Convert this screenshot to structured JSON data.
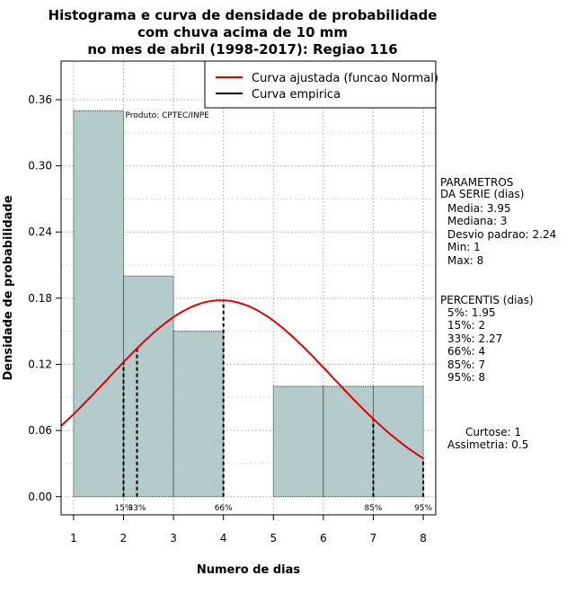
{
  "chart_data": {
    "type": "bar",
    "title_lines": [
      "Histograma e curva de densidade de probabilidade",
      "com chuva acima de 10 mm",
      "no mes de abril (1998-2017): Regiao 116"
    ],
    "xlabel": "Numero de dias",
    "ylabel": "Densidade de probabilidade",
    "xlim": [
      0.75,
      8.25
    ],
    "ylim": [
      -0.0165,
      0.395
    ],
    "x_ticks": [
      "1",
      "2",
      "3",
      "4",
      "5",
      "6",
      "7",
      "8"
    ],
    "y_ticks": [
      "0.00",
      "0.06",
      "0.12",
      "0.18",
      "0.24",
      "0.30",
      "0.36"
    ],
    "bins": [
      {
        "start": 1,
        "end": 2,
        "density": 0.35
      },
      {
        "start": 2,
        "end": 3,
        "density": 0.2
      },
      {
        "start": 3,
        "end": 4,
        "density": 0.15
      },
      {
        "start": 4,
        "end": 5,
        "density": 0.0
      },
      {
        "start": 5,
        "end": 6,
        "density": 0.1
      },
      {
        "start": 6,
        "end": 7,
        "density": 0.1
      },
      {
        "start": 7,
        "end": 8,
        "density": 0.1
      }
    ],
    "normal_curve": {
      "mean": 3.95,
      "sd": 2.24
    },
    "percentile_markers": [
      {
        "label": "15%",
        "x": 2
      },
      {
        "label": "33%",
        "x": 2.27
      },
      {
        "label": "66%",
        "x": 4
      },
      {
        "label": "85%",
        "x": 7
      },
      {
        "label": "95%",
        "x": 8
      }
    ],
    "legend": {
      "position": "top-right",
      "entries": [
        {
          "label": "Curva ajustada (funcao Normal)",
          "color": "#e00000"
        },
        {
          "label": "Curva empirica",
          "color": "#000000"
        }
      ]
    },
    "annotation": "Produto: CPTEC/INPE",
    "colors": {
      "bar_fill": "#b4cbcb",
      "curve": "#e00000",
      "grid": "#b8b8b8"
    }
  },
  "stats": {
    "parametros_title_1": "PARAMETROS",
    "parametros_title_2": "DA SERIE (dias)",
    "media": "Media: 3.95",
    "mediana": "Mediana: 3",
    "desvio": "Desvio padrao: 2.24",
    "min": "Min: 1",
    "max": "Max: 8",
    "percentis_title": "PERCENTIS (dias)",
    "p5": "5%: 1.95",
    "p15": "15%: 2",
    "p33": "33%: 2.27",
    "p66": "66%: 4",
    "p85": "85%: 7",
    "p95": "95%: 8",
    "curtose": "Curtose: 1",
    "assimetria": "Assimetria: 0.5"
  }
}
